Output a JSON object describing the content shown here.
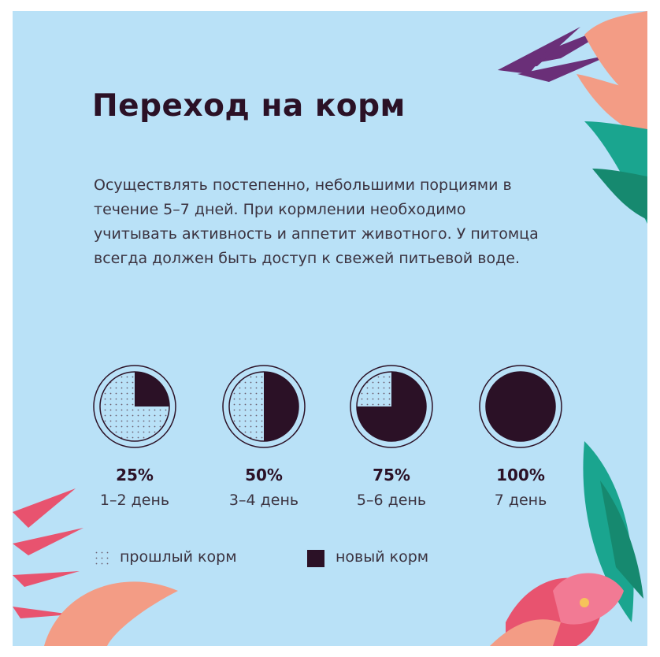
{
  "title": "Переход на корм",
  "description": "Осуществлять постепенно, небольшими порциями в течение 5–7 дней. При кормлении необходимо учитывать активность и аппетит животного. У питомца всегда должен быть доступ к свежей питьевой воде.",
  "stages": [
    {
      "percent_label": "25%",
      "days_label": "1–2 день",
      "new_fraction": 0.25
    },
    {
      "percent_label": "50%",
      "days_label": "3–4 день",
      "new_fraction": 0.5
    },
    {
      "percent_label": "75%",
      "days_label": "5–6 день",
      "new_fraction": 0.75
    },
    {
      "percent_label": "100%",
      "days_label": "7 день",
      "new_fraction": 1.0
    }
  ],
  "legend": {
    "old_label": "прошлый корм",
    "new_label": "новый корм"
  },
  "colors": {
    "background": "#b9e1f7",
    "dark": "#2b1126",
    "purple_leaf": "#6a2f78",
    "coral": "#f39c85",
    "pink": "#e8536f",
    "teal": "#1aa58f"
  }
}
